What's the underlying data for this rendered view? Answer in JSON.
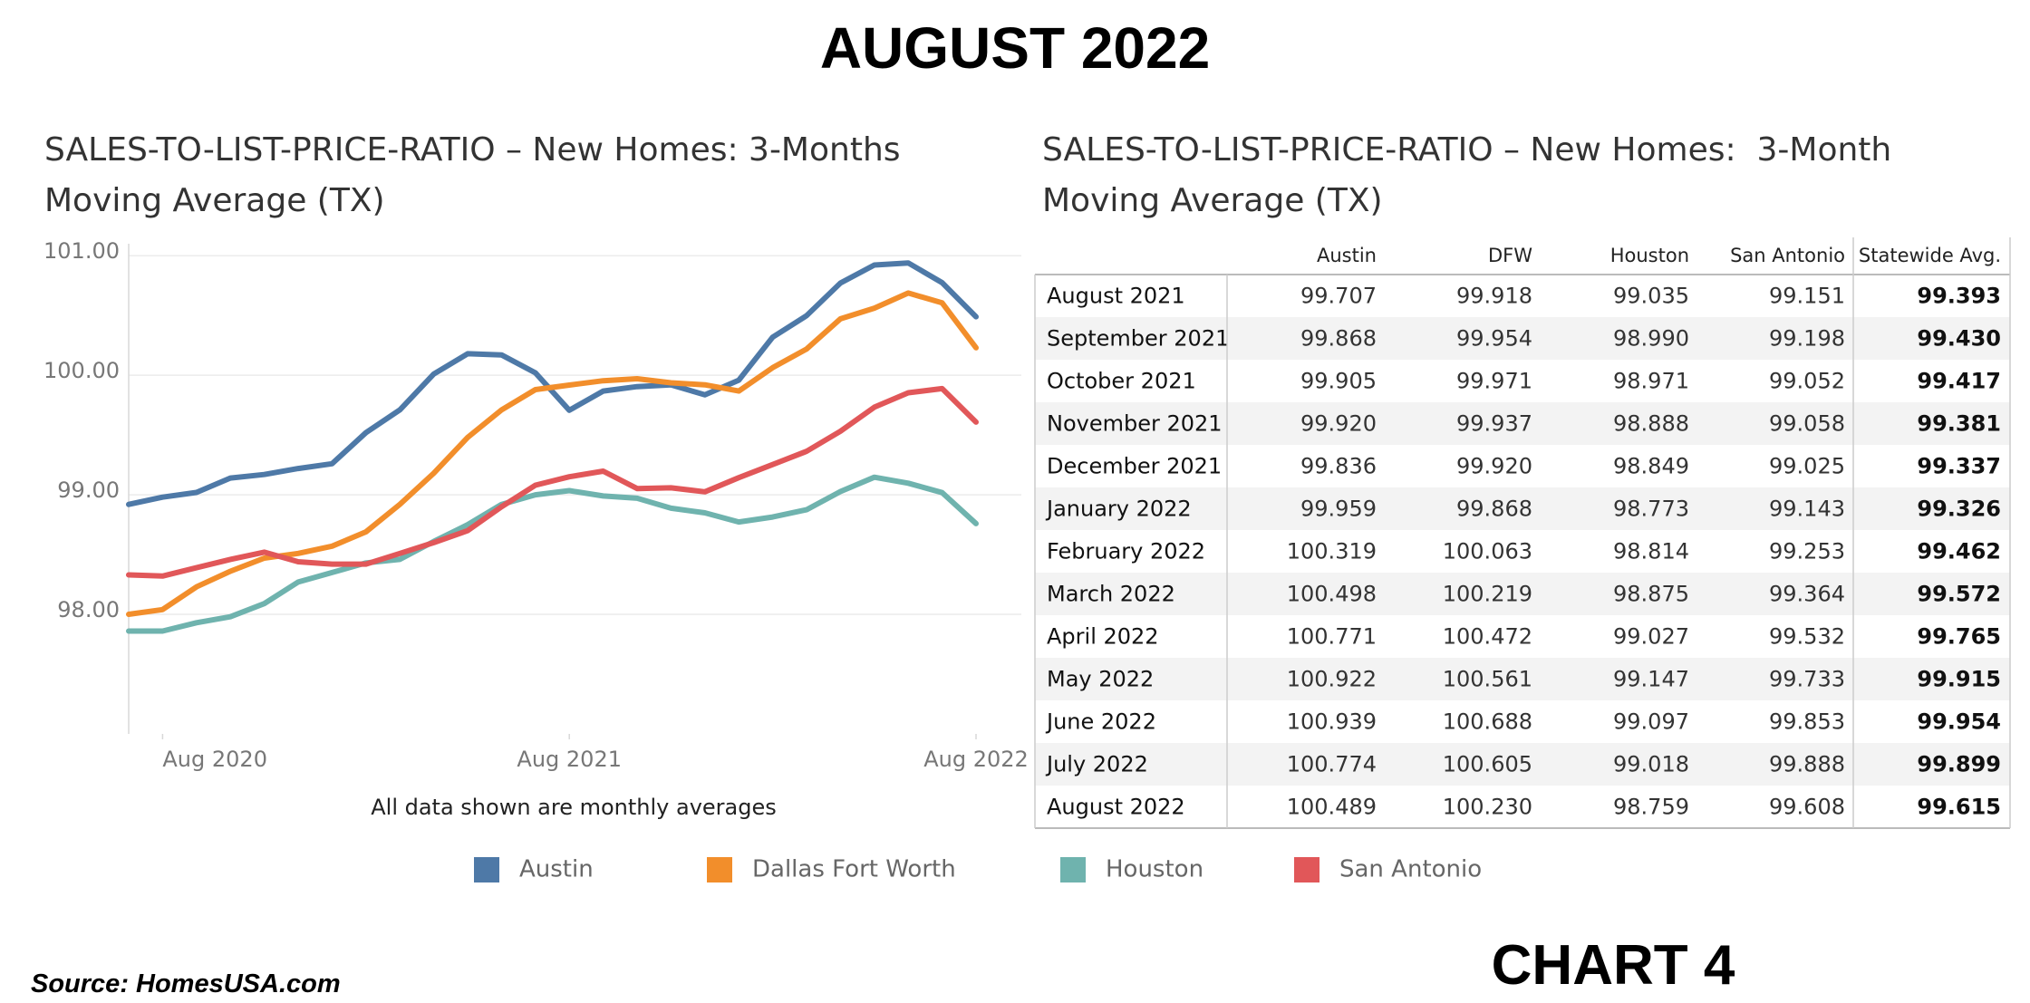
{
  "title": "AUGUST 2022",
  "chart_data": {
    "type": "line",
    "title": "SALES-TO-LIST-PRICE-RATIO – New Homes: 3-Months Moving Average (TX)",
    "note": "All data shown are monthly averages",
    "x": [
      "2020-07",
      "2020-08",
      "2020-09",
      "2020-10",
      "2020-11",
      "2020-12",
      "2021-01",
      "2021-02",
      "2021-03",
      "2021-04",
      "2021-05",
      "2021-06",
      "2021-07",
      "2021-08",
      "2021-09",
      "2021-10",
      "2021-11",
      "2021-12",
      "2022-01",
      "2022-02",
      "2022-03",
      "2022-04",
      "2022-05",
      "2022-06",
      "2022-07",
      "2022-08"
    ],
    "xlim": [
      "2020-07",
      "2022-08"
    ],
    "xticks": [
      {
        "value": "2020-08",
        "label": "Aug 2020"
      },
      {
        "value": "2021-08",
        "label": "Aug 2021"
      },
      {
        "value": "2022-08",
        "label": "Aug 2022"
      }
    ],
    "ylim": [
      97.0,
      101.1
    ],
    "yticks": [
      {
        "value": 98,
        "label": "98.00"
      },
      {
        "value": 99,
        "label": "99.00"
      },
      {
        "value": 100,
        "label": "100.00"
      },
      {
        "value": 101,
        "label": "101.00"
      }
    ],
    "grid": true,
    "legend": "bottom",
    "series": [
      {
        "name": "Austin",
        "color": "#4e79a7",
        "values": [
          98.92,
          98.98,
          99.02,
          99.14,
          99.17,
          99.22,
          99.26,
          99.52,
          99.71,
          100.01,
          100.18,
          100.17,
          100.02,
          99.707,
          99.868,
          99.905,
          99.92,
          99.836,
          99.959,
          100.319,
          100.498,
          100.771,
          100.922,
          100.939,
          100.774,
          100.489
        ]
      },
      {
        "name": "Dallas Fort Worth",
        "color": "#f28e2b",
        "values": [
          98.0,
          98.04,
          98.23,
          98.36,
          98.47,
          98.51,
          98.57,
          98.69,
          98.92,
          99.18,
          99.48,
          99.71,
          99.88,
          99.918,
          99.954,
          99.971,
          99.937,
          99.92,
          99.868,
          100.063,
          100.219,
          100.472,
          100.561,
          100.688,
          100.605,
          100.23
        ]
      },
      {
        "name": "Houston",
        "color": "#6fb3ae",
        "values": [
          97.86,
          97.86,
          97.93,
          97.98,
          98.09,
          98.27,
          98.35,
          98.43,
          98.46,
          98.61,
          98.75,
          98.92,
          99.0,
          99.035,
          98.99,
          98.971,
          98.888,
          98.849,
          98.773,
          98.814,
          98.875,
          99.027,
          99.147,
          99.097,
          99.018,
          98.759
        ]
      },
      {
        "name": "San Antonio",
        "color": "#e15759",
        "values": [
          98.33,
          98.32,
          98.39,
          98.46,
          98.52,
          98.44,
          98.42,
          98.42,
          98.51,
          98.6,
          98.7,
          98.9,
          99.08,
          99.151,
          99.198,
          99.052,
          99.058,
          99.025,
          99.143,
          99.253,
          99.364,
          99.532,
          99.733,
          99.853,
          99.888,
          99.608
        ]
      }
    ]
  },
  "table": {
    "title": "SALES-TO-LIST-PRICE-RATIO – New Homes:  3-Month Moving Average (TX)",
    "columns": [
      "Austin",
      "DFW",
      "Houston",
      "San Antonio",
      "Statewide Avg."
    ],
    "rows": [
      {
        "label": "August 2021",
        "values": [
          "99.707",
          "99.918",
          "99.035",
          "99.151",
          "99.393"
        ]
      },
      {
        "label": "September 2021",
        "values": [
          "99.868",
          "99.954",
          "98.990",
          "99.198",
          "99.430"
        ]
      },
      {
        "label": "October 2021",
        "values": [
          "99.905",
          "99.971",
          "98.971",
          "99.052",
          "99.417"
        ]
      },
      {
        "label": "November 2021",
        "values": [
          "99.920",
          "99.937",
          "98.888",
          "99.058",
          "99.381"
        ]
      },
      {
        "label": "December 2021",
        "values": [
          "99.836",
          "99.920",
          "98.849",
          "99.025",
          "99.337"
        ]
      },
      {
        "label": "January 2022",
        "values": [
          "99.959",
          "99.868",
          "98.773",
          "99.143",
          "99.326"
        ]
      },
      {
        "label": "February 2022",
        "values": [
          "100.319",
          "100.063",
          "98.814",
          "99.253",
          "99.462"
        ]
      },
      {
        "label": "March 2022",
        "values": [
          "100.498",
          "100.219",
          "98.875",
          "99.364",
          "99.572"
        ]
      },
      {
        "label": "April 2022",
        "values": [
          "100.771",
          "100.472",
          "99.027",
          "99.532",
          "99.765"
        ]
      },
      {
        "label": "May 2022",
        "values": [
          "100.922",
          "100.561",
          "99.147",
          "99.733",
          "99.915"
        ]
      },
      {
        "label": "June 2022",
        "values": [
          "100.939",
          "100.688",
          "99.097",
          "99.853",
          "99.954"
        ]
      },
      {
        "label": "July 2022",
        "values": [
          "100.774",
          "100.605",
          "99.018",
          "99.888",
          "99.899"
        ]
      },
      {
        "label": "August 2022",
        "values": [
          "100.489",
          "100.230",
          "98.759",
          "99.608",
          "99.615"
        ]
      }
    ]
  },
  "source": "Source: HomesUSA.com",
  "chart_label": "CHART 4"
}
